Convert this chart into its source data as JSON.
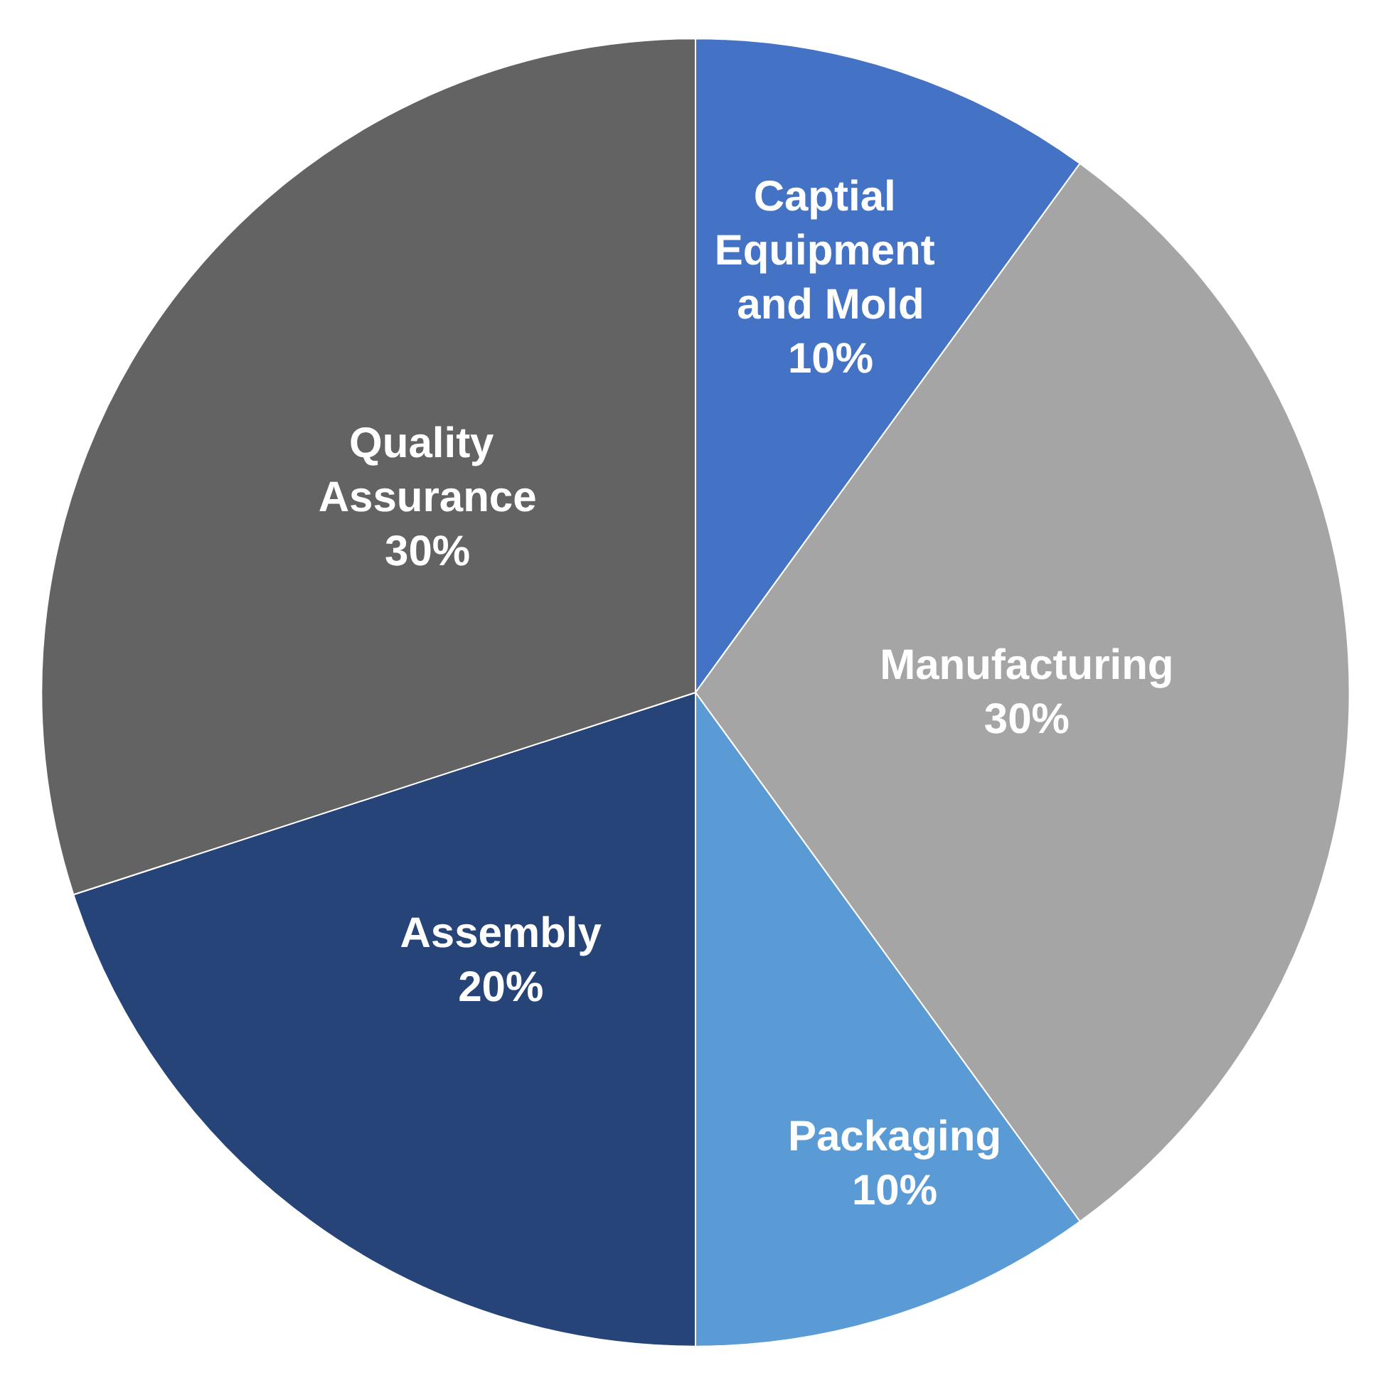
{
  "chart_data": {
    "type": "pie",
    "categories": [
      "Captial Equipment and Mold",
      "Manufacturing",
      "Packaging",
      "Assembly",
      "Quality Assurance"
    ],
    "values": [
      10,
      30,
      10,
      20,
      30
    ],
    "value_labels": [
      "10%",
      "30%",
      "10%",
      "20%",
      "30%"
    ],
    "colors": [
      "#4472c4",
      "#a5a5a5",
      "#5b9bd5",
      "#264478",
      "#636363"
    ],
    "legend": false
  }
}
